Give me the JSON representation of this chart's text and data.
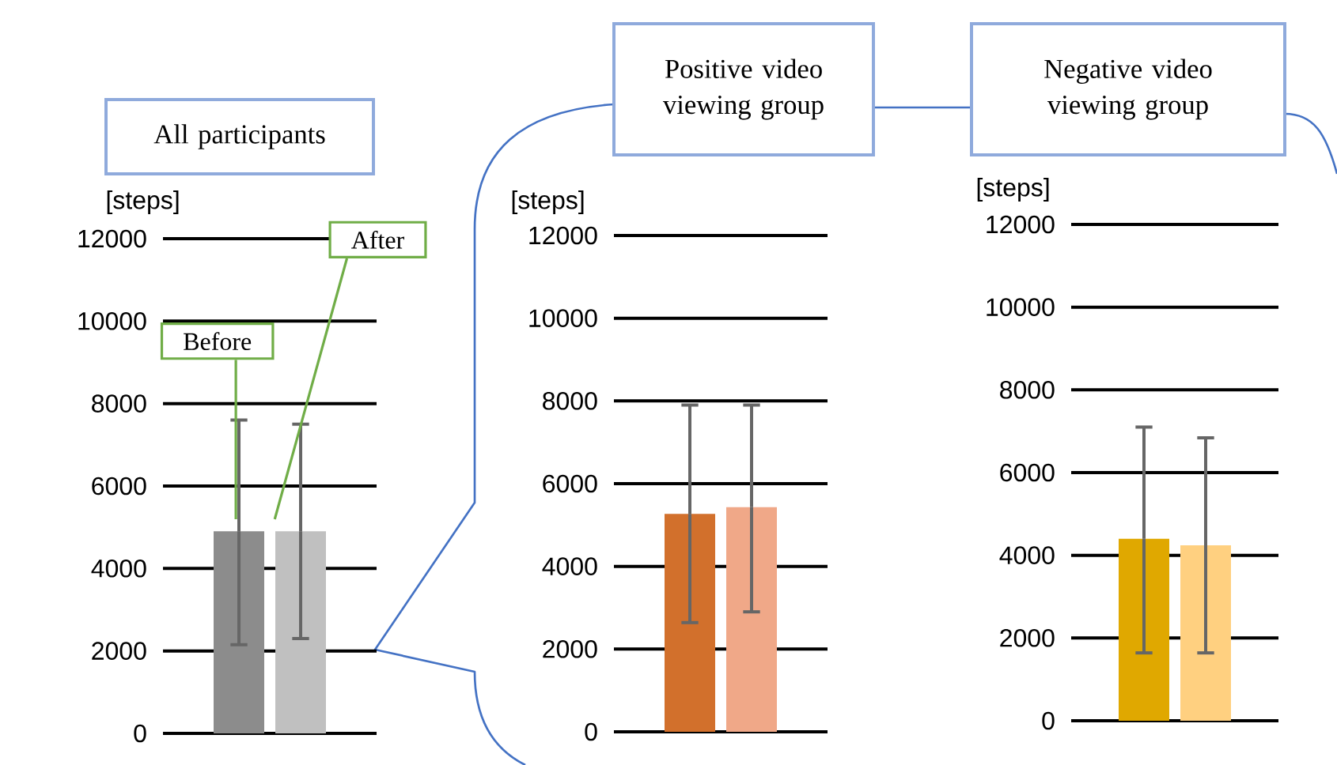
{
  "chart_data": [
    {
      "type": "bar",
      "title": "All participants",
      "ylabel": "[steps]",
      "categories": [
        null,
        null
      ],
      "values": [
        4900,
        4900
      ],
      "colors": [
        "#8c8c8c",
        "#c0c0c0"
      ],
      "errors": [
        [
          2150,
          7600
        ],
        [
          2300,
          7500
        ]
      ],
      "ylim": [
        0,
        12000
      ],
      "yticks": [
        0,
        2000,
        4000,
        6000,
        8000,
        10000,
        12000
      ],
      "grid": "y",
      "annotations": [
        "Before",
        "After"
      ]
    },
    {
      "type": "bar",
      "title": "Positive video viewing group",
      "ylabel": "[steps]",
      "categories": [
        null,
        null
      ],
      "values": [
        5270,
        5430
      ],
      "colors": [
        "#d2702c",
        "#f0a888"
      ],
      "errors": [
        [
          2640,
          7900
        ],
        [
          2900,
          7900
        ]
      ],
      "ylim": [
        0,
        12000
      ],
      "yticks": [
        0,
        2000,
        4000,
        6000,
        8000,
        10000,
        12000
      ],
      "grid": "y"
    },
    {
      "type": "bar",
      "title": "Negative video viewing group",
      "ylabel": "[steps]",
      "categories": [
        null,
        null
      ],
      "values": [
        4400,
        4240
      ],
      "colors": [
        "#e0a800",
        "#ffd080"
      ],
      "errors": [
        [
          1640,
          7100
        ],
        [
          1640,
          6840
        ]
      ],
      "ylim": [
        0,
        12000
      ],
      "yticks": [
        0,
        2000,
        4000,
        6000,
        8000,
        10000,
        12000
      ],
      "grid": "y"
    }
  ]
}
